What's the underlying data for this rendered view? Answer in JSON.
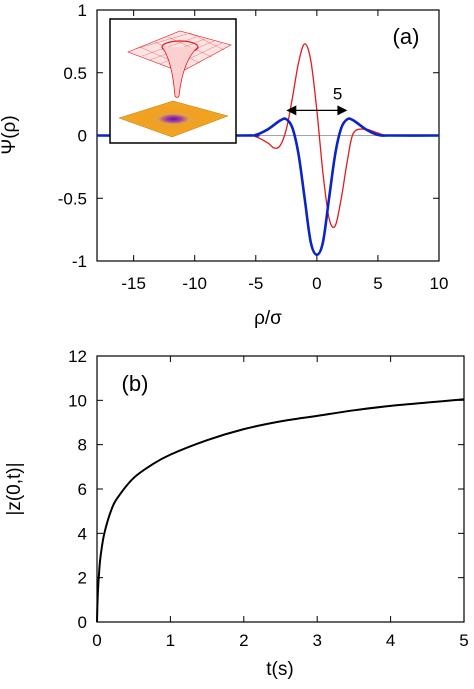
{
  "chart_data": [
    {
      "type": "line",
      "panel_label": "(a)",
      "xlabel": "ρ/σ",
      "ylabel": "Ψ(ρ)",
      "xlim": [
        -18,
        10
      ],
      "ylim": [
        -1,
        1
      ],
      "xticks": [
        -15,
        -10,
        -5,
        0,
        5,
        10
      ],
      "yticks": [
        1,
        0.5,
        0,
        -0.5,
        -1
      ],
      "ytick_labels": [
        "1",
        "0.5",
        "0",
        "-0.5",
        "-1"
      ],
      "zero_line": true,
      "annotation": {
        "text": "5",
        "arrow_from": -2.5,
        "arrow_to": 2.5,
        "y": 0.2
      },
      "inset": "3D surface plot of the wavefunction and 2D density map",
      "series": [
        {
          "color": "#e41a1c",
          "x": [
            -18,
            -6,
            -5,
            -4,
            -3.5,
            -3,
            -2.5,
            -2,
            -1.5,
            -1,
            -0.5,
            0,
            0.5,
            1,
            1.5,
            2,
            2.5,
            3,
            4,
            5,
            6,
            10
          ],
          "y": [
            0,
            0,
            -0.01,
            -0.06,
            -0.1,
            -0.08,
            0.05,
            0.3,
            0.58,
            0.73,
            0.6,
            0.2,
            -0.3,
            -0.66,
            -0.72,
            -0.5,
            -0.2,
            0.02,
            0.05,
            0.02,
            0,
            0
          ]
        },
        {
          "color": "#0b24c4",
          "x": [
            -18,
            -6,
            -5,
            -4,
            -3,
            -2.5,
            -2,
            -1.5,
            -1,
            -0.5,
            0,
            0.5,
            1,
            1.5,
            2,
            2.5,
            3,
            4,
            5,
            6,
            10
          ],
          "y": [
            0,
            0,
            0.005,
            0.05,
            0.12,
            0.13,
            0.06,
            -0.15,
            -0.5,
            -0.85,
            -0.95,
            -0.85,
            -0.5,
            -0.15,
            0.06,
            0.13,
            0.12,
            0.05,
            0.005,
            0,
            0
          ]
        }
      ]
    },
    {
      "type": "line",
      "panel_label": "(b)",
      "xlabel": "t(s)",
      "ylabel": "|z(0,t)|",
      "xlim": [
        0,
        5
      ],
      "ylim": [
        0,
        12
      ],
      "xticks": [
        0,
        1,
        2,
        3,
        4,
        5
      ],
      "yticks": [
        0,
        2,
        4,
        6,
        8,
        10,
        12
      ],
      "series": [
        {
          "color": "#000000",
          "x": [
            0,
            0.01,
            0.03,
            0.05,
            0.1,
            0.2,
            0.3,
            0.5,
            0.75,
            1,
            1.5,
            2,
            2.5,
            3,
            3.5,
            4,
            4.5,
            5
          ],
          "y": [
            0,
            1.2,
            2.3,
            3.0,
            4.0,
            5.1,
            5.7,
            6.5,
            7.1,
            7.55,
            8.2,
            8.7,
            9.05,
            9.3,
            9.55,
            9.75,
            9.9,
            10.05
          ]
        }
      ]
    }
  ]
}
